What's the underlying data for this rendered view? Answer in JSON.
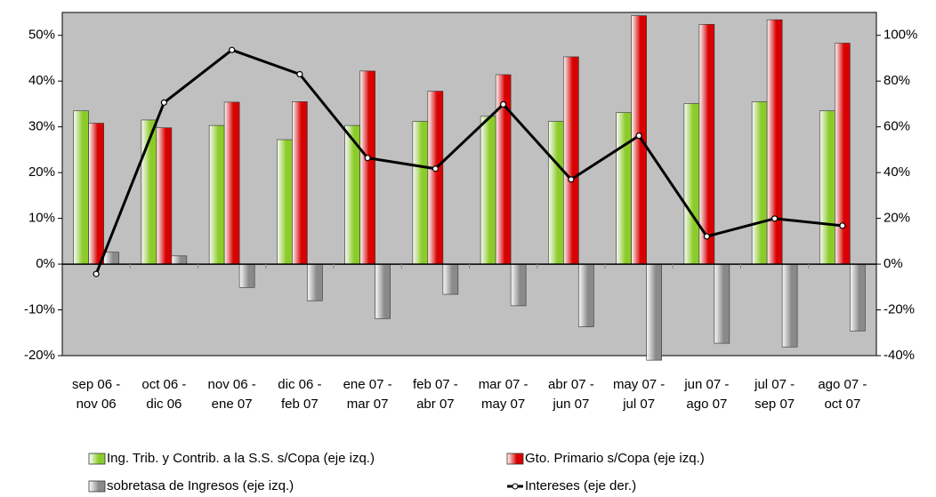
{
  "chart_data": {
    "type": "bar",
    "categories": [
      [
        "sep 06 -",
        "nov 06"
      ],
      [
        "oct 06 -",
        "dic 06"
      ],
      [
        "nov 06 -",
        "ene 07"
      ],
      [
        "dic 06 -",
        "feb 07"
      ],
      [
        "ene 07 -",
        "mar 07"
      ],
      [
        "feb 07 -",
        "abr 07"
      ],
      [
        "mar 07 -",
        "may 07"
      ],
      [
        "abr 07 -",
        "jun 07"
      ],
      [
        "may 07 -",
        "jul 07"
      ],
      [
        "jun 07 -",
        "ago 07"
      ],
      [
        "jul 07 -",
        "sep 07"
      ],
      [
        "ago 07 -",
        "oct 07"
      ]
    ],
    "series": [
      {
        "name": "Ing. Trib. y Contrib. a la S.S. s/Copa (eje izq.)",
        "color": "#8ccc2a",
        "type": "bar",
        "values": [
          33.5,
          31.5,
          30.3,
          27.2,
          30.3,
          31.2,
          32.3,
          31.2,
          33.1,
          35.1,
          35.5,
          33.5
        ]
      },
      {
        "name": "Gto. Primario s/Copa (eje izq.)",
        "color": "#d80000",
        "type": "bar",
        "values": [
          30.8,
          29.8,
          35.4,
          35.5,
          42.2,
          37.8,
          41.4,
          45.3,
          54.3,
          52.4,
          53.4,
          48.3
        ]
      },
      {
        "name": "sobretasa de Ingresos (eje izq.)",
        "color": "#8a8a8a",
        "type": "bar",
        "values": [
          2.6,
          1.8,
          -5.1,
          -8.0,
          -11.9,
          -6.6,
          -9.1,
          -13.7,
          -21,
          -17.3,
          -18.1,
          -14.6
        ]
      },
      {
        "name": "Intereses (eje der.)",
        "color": "#000000",
        "type": "line",
        "axis": "y2",
        "values": [
          -4.3,
          70.6,
          93.6,
          83,
          46.4,
          41.7,
          69.8,
          37,
          56.1,
          12.1,
          19.9,
          16.8
        ]
      }
    ],
    "ylim": [
      -20,
      55
    ],
    "yticks": [
      {
        "value": -20,
        "label": "-20%"
      },
      {
        "value": -10,
        "label": "-10%"
      },
      {
        "value": 0,
        "label": "0%"
      },
      {
        "value": 10,
        "label": "10%"
      },
      {
        "value": 20,
        "label": "20%"
      },
      {
        "value": 30,
        "label": "30%"
      },
      {
        "value": 40,
        "label": "40%"
      },
      {
        "value": 50,
        "label": "50%"
      }
    ],
    "y2lim": [
      -40,
      110
    ],
    "y2ticks": [
      {
        "value": -40,
        "label": "-40%"
      },
      {
        "value": -20,
        "label": "-20%"
      },
      {
        "value": 0,
        "label": "0%"
      },
      {
        "value": 20,
        "label": "20%"
      },
      {
        "value": 40,
        "label": "40%"
      },
      {
        "value": 60,
        "label": "60%"
      },
      {
        "value": 80,
        "label": "80%"
      },
      {
        "value": 100,
        "label": "100%"
      }
    ],
    "grid": false
  }
}
